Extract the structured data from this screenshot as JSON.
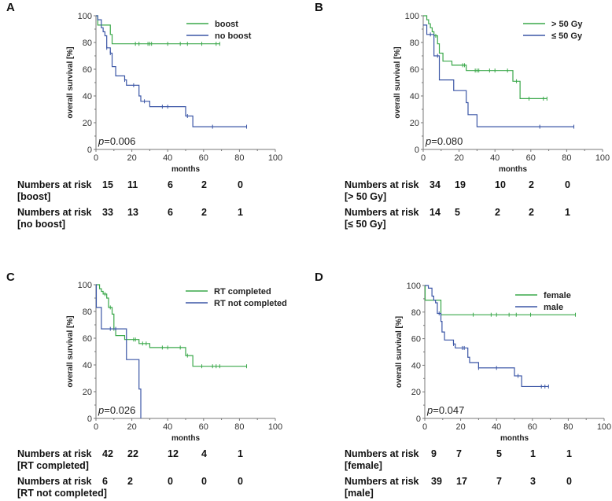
{
  "chart_data": [
    {
      "type": "line",
      "panel": "A",
      "xlabel": "months",
      "ylabel": "overall survival [%]",
      "xlim": [
        0,
        100
      ],
      "ylim": [
        0,
        100
      ],
      "xticks": [
        "0",
        "20",
        "40",
        "60",
        "80",
        "100"
      ],
      "yticks": [
        "0",
        "20",
        "40",
        "60",
        "80",
        "100"
      ],
      "p_prefix": "p",
      "p_value": "=0.006",
      "legend_position": "top-right",
      "series": [
        {
          "name": "boost",
          "color": "#3aa84a",
          "end": 69,
          "steps": [
            [
              0,
              100
            ],
            [
              1,
              93
            ],
            [
              8,
              86
            ],
            [
              9,
              79
            ]
          ],
          "censored": [
            22,
            24,
            29,
            30,
            31,
            40,
            47,
            51,
            59,
            67,
            69
          ]
        },
        {
          "name": "no boost",
          "color": "#3b56a6",
          "end": 84,
          "steps": [
            [
              0,
              100
            ],
            [
              1,
              97
            ],
            [
              3,
              91
            ],
            [
              4,
              88
            ],
            [
              5,
              85
            ],
            [
              6,
              76
            ],
            [
              8,
              72
            ],
            [
              9,
              62
            ],
            [
              11,
              55
            ],
            [
              16,
              52
            ],
            [
              17,
              48
            ],
            [
              24,
              40
            ],
            [
              25,
              36
            ],
            [
              30,
              32
            ],
            [
              50,
              25
            ],
            [
              54,
              17
            ]
          ],
          "censored": [
            6,
            8,
            16,
            21,
            27,
            37,
            40,
            51,
            65,
            84
          ]
        }
      ],
      "risk_table": {
        "times": [
          0,
          20,
          40,
          60,
          80
        ],
        "rows": [
          {
            "label1": "Numbers at risk",
            "label2": "[boost]",
            "values": [
              "15",
              "11",
              "6",
              "2",
              "0"
            ]
          },
          {
            "label1": "Numbers at risk",
            "label2": "[no boost]",
            "values": [
              "33",
              "13",
              "6",
              "2",
              "1"
            ]
          }
        ]
      }
    },
    {
      "type": "line",
      "panel": "B",
      "xlabel": "months",
      "ylabel": "overall survival [%]",
      "xlim": [
        0,
        100
      ],
      "ylim": [
        0,
        100
      ],
      "xticks": [
        "0",
        "20",
        "40",
        "60",
        "80",
        "100"
      ],
      "yticks": [
        "0",
        "20",
        "40",
        "60",
        "80",
        "100"
      ],
      "p_prefix": "p",
      "p_value": "=0.080",
      "legend_position": "top-right",
      "series": [
        {
          "name": "> 50 Gy",
          "color": "#3aa84a",
          "end": 69,
          "steps": [
            [
              0,
              100
            ],
            [
              2,
              97
            ],
            [
              3,
              94
            ],
            [
              4,
              91
            ],
            [
              5,
              88
            ],
            [
              6,
              85
            ],
            [
              8,
              79
            ],
            [
              9,
              72
            ],
            [
              11,
              66
            ],
            [
              16,
              63
            ],
            [
              24,
              59
            ],
            [
              50,
              51
            ],
            [
              54,
              38
            ]
          ],
          "censored": [
            7,
            22,
            23,
            29,
            30,
            31,
            37,
            40,
            47,
            52,
            59,
            67,
            69
          ]
        },
        {
          "name": "≤ 50 Gy",
          "color": "#3b56a6",
          "end": 84,
          "steps": [
            [
              0,
              93
            ],
            [
              2,
              86
            ],
            [
              6,
              70
            ],
            [
              9,
              52
            ],
            [
              17,
              44
            ],
            [
              24,
              35
            ],
            [
              25,
              26
            ],
            [
              30,
              17
            ]
          ],
          "censored": [
            4,
            8,
            65,
            84
          ]
        }
      ],
      "risk_table": {
        "times": [
          0,
          20,
          40,
          60,
          80
        ],
        "rows": [
          {
            "label1": "Numbers at risk",
            "label2": "[> 50 Gy]",
            "values": [
              "34",
              "19",
              "10",
              "2",
              "0"
            ]
          },
          {
            "label1": "Numbers at risk",
            "label2": "[≤ 50 Gy]",
            "values": [
              "14",
              "5",
              "2",
              "2",
              "1"
            ]
          }
        ]
      }
    },
    {
      "type": "line",
      "panel": "C",
      "xlabel": "months",
      "ylabel": "overall survival [%]",
      "xlim": [
        0,
        100
      ],
      "ylim": [
        0,
        100
      ],
      "xticks": [
        "0",
        "20",
        "40",
        "60",
        "80",
        "100"
      ],
      "yticks": [
        "0",
        "20",
        "40",
        "60",
        "80",
        "100"
      ],
      "p_prefix": "p",
      "p_value": "=0.026",
      "legend_position": "top-right",
      "series": [
        {
          "name": "RT completed",
          "color": "#3aa84a",
          "end": 84,
          "steps": [
            [
              0,
              100
            ],
            [
              2,
              97
            ],
            [
              3,
              95
            ],
            [
              4,
              93
            ],
            [
              6,
              90
            ],
            [
              7,
              83
            ],
            [
              9,
              78
            ],
            [
              10,
              67
            ],
            [
              11,
              62
            ],
            [
              16,
              59
            ],
            [
              24,
              56
            ],
            [
              30,
              53
            ],
            [
              50,
              47
            ],
            [
              54,
              39
            ]
          ],
          "censored": [
            5,
            8,
            10,
            21,
            22,
            26,
            28,
            37,
            40,
            47,
            51,
            59,
            65,
            67,
            69,
            84
          ]
        },
        {
          "name": "RT not completed",
          "color": "#3b56a6",
          "end": 25,
          "steps": [
            [
              0,
              100
            ],
            [
              0.2,
              83
            ],
            [
              3,
              67
            ],
            [
              17,
              44
            ],
            [
              24,
              22
            ],
            [
              25,
              0
            ]
          ],
          "censored": [
            8,
            11
          ]
        }
      ],
      "risk_table": {
        "times": [
          0,
          20,
          40,
          60,
          80
        ],
        "rows": [
          {
            "label1": "Numbers at risk",
            "label2": "[RT completed]",
            "values": [
              "42",
              "22",
              "12",
              "4",
              "1"
            ]
          },
          {
            "label1": "Numbers at risk",
            "label2": "[RT not completed]",
            "values": [
              "6",
              "2",
              "0",
              "0",
              "0"
            ]
          }
        ]
      }
    },
    {
      "type": "line",
      "panel": "D",
      "xlabel": "months",
      "ylabel": "overall survival [%]",
      "xlim": [
        0,
        100
      ],
      "ylim": [
        0,
        100
      ],
      "xticks": [
        "0",
        "20",
        "40",
        "60",
        "80",
        "100"
      ],
      "yticks": [
        "0",
        "20",
        "40",
        "60",
        "80",
        "100"
      ],
      "p_prefix": "p",
      "p_value": "=0.047",
      "legend_position": "top-right",
      "series": [
        {
          "name": "female",
          "color": "#3aa84a",
          "end": 84,
          "steps": [
            [
              0,
              100
            ],
            [
              0.2,
              89
            ],
            [
              9,
              78
            ]
          ],
          "censored": [
            27,
            37,
            40,
            47,
            51,
            59,
            84
          ]
        },
        {
          "name": "male",
          "color": "#3b56a6",
          "end": 69,
          "steps": [
            [
              0,
              100
            ],
            [
              2,
              98
            ],
            [
              4,
              92
            ],
            [
              5,
              89
            ],
            [
              6,
              87
            ],
            [
              7,
              79
            ],
            [
              9,
              73
            ],
            [
              9.6,
              65
            ],
            [
              11,
              59
            ],
            [
              16,
              56
            ],
            [
              17,
              53
            ],
            [
              24,
              46
            ],
            [
              25,
              42
            ],
            [
              30,
              38
            ],
            [
              50,
              32
            ],
            [
              54,
              24
            ]
          ],
          "censored": [
            8,
            16,
            21,
            22,
            30,
            40,
            52,
            65,
            67,
            69
          ]
        }
      ],
      "risk_table": {
        "times": [
          0,
          20,
          40,
          60,
          80
        ],
        "rows": [
          {
            "label1": "Numbers at risk",
            "label2": "[female]",
            "values": [
              "9",
              "7",
              "5",
              "1",
              "1"
            ]
          },
          {
            "label1": "Numbers at risk",
            "label2": "[male]",
            "values": [
              "39",
              "17",
              "7",
              "3",
              "0"
            ]
          }
        ]
      }
    }
  ]
}
